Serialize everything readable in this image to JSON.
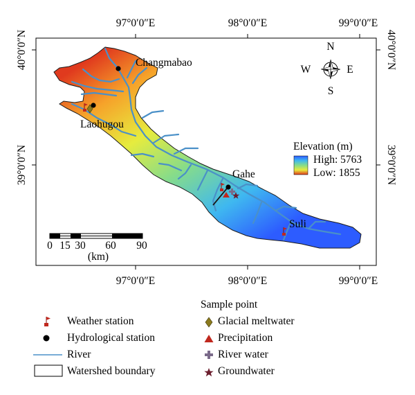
{
  "axes": {
    "top": [
      "97°0′0″E",
      "98°0′0″E",
      "99°0′0″E"
    ],
    "bottom": [
      "97°0′0″E",
      "98°0′0″E",
      "99°0′0″E"
    ],
    "left": [
      "40°0′0″N",
      "39°0′0″N"
    ],
    "right": [
      "40°0′0″N",
      "39°0′0″N"
    ]
  },
  "places": {
    "changmabao": "Changmabao",
    "laohugou": "Laohugou",
    "gahe": "Gahe",
    "suli": "Suli"
  },
  "compass": {
    "n": "N",
    "s": "S",
    "w": "W",
    "e": "E"
  },
  "elevation": {
    "title": "Elevation (m)",
    "high": "High: 5763",
    "low": "Low: 1855",
    "colors": [
      "#2d5cff",
      "#3fb8f0",
      "#86dc8a",
      "#e6ec3e",
      "#f6a22a",
      "#e03a1e"
    ]
  },
  "scalebar": {
    "ticks": [
      "0",
      "15",
      "30",
      "60",
      "90"
    ],
    "unit": "(km)"
  },
  "legend": {
    "weather_station": "Weather station",
    "hydrological_station": "Hydrological station",
    "river": "River",
    "watershed_boundary": "Watershed boundary",
    "sample_point_title": "Sample point",
    "glacial_meltwater": "Glacial meltwater",
    "precipitation": "Precipitation",
    "river_water": "River water",
    "groundwater": "Groundwater"
  },
  "colors": {
    "river": "#4a90c8",
    "glacial_meltwater": "#8b7a1e",
    "precipitation": "#c0281e",
    "river_water": "#7a6a8a",
    "groundwater": "#6b1e2e"
  }
}
